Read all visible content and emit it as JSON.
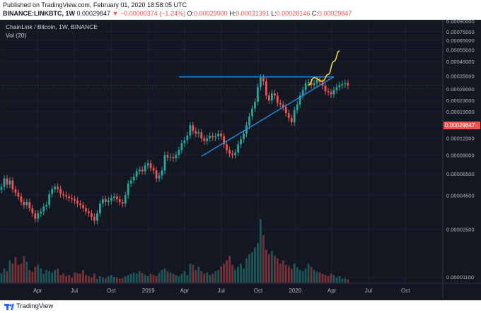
{
  "header": {
    "published": "Published on TradingView.com, February 01, 2020 18:58:05 UTC",
    "symbol": "BINANCE:LINKBTC, 1W",
    "last": "0.00029847",
    "change": "▼ −0.00000374 (−1.24%)",
    "o_label": "O:",
    "o": "0.00029900",
    "h_label": "H:",
    "h": "0.00031391",
    "l_label": "L:",
    "l": "0.00028146",
    "c_label": "C:",
    "c": "0.00029847"
  },
  "legend": {
    "title": "ChainLink / Bitcoin, 1W, BINANCE",
    "volume": "Vol (20)"
  },
  "price_tag": "0.00029847",
  "footer": {
    "brand": "TradingView"
  },
  "colors": {
    "up": "#26a69a",
    "down": "#ef5350",
    "trend": "#2196f3",
    "projection": "#ffeb3b",
    "background": "#131722"
  },
  "chart_data": {
    "type": "candlestick",
    "ylog": true,
    "ylim": [
      1e-05,
      0.0009
    ],
    "y_ticks": [
      "0.00090000",
      "0.00075000",
      "0.00065000",
      "0.00055000",
      "0.00045000",
      "0.00035000",
      "0.00028000",
      "0.00023000",
      "0.00019000",
      "0.00015000",
      "0.00012000",
      "0.00009000",
      "0.00006500",
      "0.00004500",
      "0.00002500",
      "0.00001100"
    ],
    "y_tick_values": [
      0.0009,
      0.00075,
      0.00065,
      0.00055,
      0.00045,
      0.00035,
      0.00028,
      0.00023,
      0.00019,
      0.00015,
      0.00012,
      9e-05,
      6.5e-05,
      4.5e-05,
      2.5e-05,
      1.1e-05
    ],
    "x_labels": [
      "Apr",
      "Jul",
      "Oct",
      "2019",
      "Apr",
      "Jul",
      "Oct",
      "2020",
      "Apr",
      "Jul",
      "Oct"
    ],
    "x_range": [
      "2018-01-01",
      "2020-12-31"
    ],
    "x_ticks": [
      "2018-04-01",
      "2018-07-01",
      "2018-10-01",
      "2019-01-01",
      "2019-04-01",
      "2019-07-01",
      "2019-10-01",
      "2020-01-01",
      "2020-04-01",
      "2020-07-01",
      "2020-10-01"
    ],
    "candles_weekly_close": [
      5.2e-05,
      6e-05,
      5.4e-05,
      5.8e-05,
      5e-05,
      4.7e-05,
      4.4e-05,
      4e-05,
      3.8e-05,
      4e-05,
      3.6e-05,
      3.3e-05,
      3e-05,
      3.3e-05,
      3.4e-05,
      3.7e-05,
      3.8e-05,
      4.6e-05,
      5e-05,
      5.2e-05,
      5e-05,
      4.6e-05,
      4.5e-05,
      4.4e-05,
      4.3e-05,
      4.2e-05,
      4.1e-05,
      3.9e-05,
      3.8e-05,
      3.6e-05,
      3.4e-05,
      3.3e-05,
      3.1e-05,
      2.9e-05,
      3.3e-05,
      3.9e-05,
      4.2e-05,
      4e-05,
      4.1e-05,
      4.3e-05,
      4.4e-05,
      4.2e-05,
      4e-05,
      3.9e-05,
      4.5e-05,
      5.5e-05,
      5.8e-05,
      6.2e-05,
      6.8e-05,
      7e-05,
      6.8e-05,
      7.5e-05,
      7.8e-05,
      7.2e-05,
      6.9e-05,
      6e-05,
      6.3e-05,
      6.9e-05,
      9e-05,
      8.6e-05,
      8.7e-05,
      8.5e-05,
      9e-05,
      9.8e-05,
      0.00011,
      0.000116,
      0.000126,
      0.00015,
      0.000136,
      0.00013,
      0.000133,
      0.00012,
      0.000114,
      0.00012,
      0.000125,
      0.000122,
      0.000124,
      0.00013,
      0.000124,
      0.000108,
      9.8e-05,
      9.2e-05,
      9e-05,
      9.4e-05,
      0.000108,
      0.000118,
      0.00013,
      0.00015,
      0.000175,
      0.0002,
      0.000225,
      0.00029,
      0.00034,
      0.00032,
      0.00025,
      0.00023,
      0.00026,
      0.00025,
      0.00022,
      0.000215,
      0.000205,
      0.000185,
      0.00017,
      0.000158,
      0.000195,
      0.000215,
      0.00025,
      0.000275,
      0.00031,
      0.000315,
      0.0003,
      0.00031,
      0.00033,
      0.000315,
      0.000295,
      0.00027,
      0.000265,
      0.000255,
      0.000275,
      0.00029,
      0.0003,
      0.000305,
      0.00031,
      0.000298
    ],
    "volume_relative": [
      0.15,
      0.22,
      0.18,
      0.35,
      0.3,
      0.4,
      0.28,
      0.3,
      0.42,
      0.33,
      0.2,
      0.17,
      0.25,
      0.28,
      0.22,
      0.14,
      0.2,
      0.18,
      0.16,
      0.2,
      0.22,
      0.12,
      0.14,
      0.1,
      0.12,
      0.08,
      0.16,
      0.15,
      0.14,
      0.2,
      0.12,
      0.1,
      0.08,
      0.14,
      0.06,
      0.1,
      0.08,
      0.07,
      0.1,
      0.12,
      0.09,
      0.08,
      0.06,
      0.07,
      0.1,
      0.12,
      0.14,
      0.16,
      0.14,
      0.18,
      0.15,
      0.12,
      0.1,
      0.14,
      0.12,
      0.1,
      0.15,
      0.2,
      0.22,
      0.18,
      0.16,
      0.14,
      0.12,
      0.1,
      0.14,
      0.18,
      0.12,
      0.3,
      0.28,
      0.2,
      0.25,
      0.18,
      0.14,
      0.16,
      0.12,
      0.14,
      0.18,
      0.2,
      0.26,
      0.3,
      0.35,
      0.42,
      0.28,
      0.2,
      0.25,
      0.3,
      0.22,
      0.38,
      0.45,
      0.48,
      0.55,
      0.62,
      1.0,
      0.75,
      0.52,
      0.45,
      0.5,
      0.42,
      0.38,
      0.3,
      0.35,
      0.28,
      0.26,
      0.22,
      0.3,
      0.24,
      0.2,
      0.18,
      0.22,
      0.3,
      0.25,
      0.2,
      0.17,
      0.16,
      0.14,
      0.12,
      0.1,
      0.14,
      0.12,
      0.08,
      0.1,
      0.06,
      0.07,
      0.05
    ],
    "drawings": {
      "resistance": 0.000345,
      "support_from": [
        "2019-05-13",
        8.8e-05
      ],
      "support_to": [
        "2020-04-06",
        0.000345
      ],
      "projection": [
        [
          "2020-02-03",
          0.0003
        ],
        [
          "2020-02-17",
          0.00034
        ],
        [
          "2020-03-09",
          0.00032
        ],
        [
          "2020-03-23",
          0.00036
        ],
        [
          "2020-04-06",
          0.00045
        ],
        [
          "2020-04-20",
          0.00054
        ]
      ]
    }
  }
}
